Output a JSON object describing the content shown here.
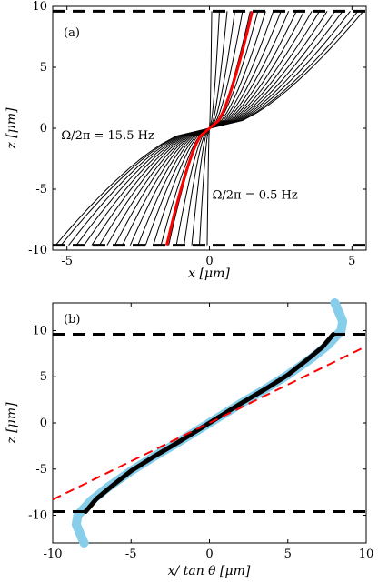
{
  "chart_data": [
    {
      "type": "line",
      "panel_label": "(a)",
      "xlabel": "x [μm]",
      "ylabel": "z [μm]",
      "xlim": [
        -5.5,
        5.5
      ],
      "ylim": [
        -10,
        10
      ],
      "xticks": [
        -5,
        0,
        5
      ],
      "xtick_labels": [
        "-5",
        "0",
        "5"
      ],
      "yticks": [
        -10,
        -5,
        0,
        5,
        10
      ],
      "ytick_labels": [
        "-10",
        "-5",
        "0",
        "5",
        "10"
      ],
      "grid": false,
      "boundary_z": [
        9.6,
        -9.6
      ],
      "curve_family": {
        "color": "#000000",
        "endpoint_x_at_top": [
          0.08,
          0.35,
          0.62,
          0.89,
          1.16,
          1.43,
          1.7,
          1.97,
          2.24,
          2.51,
          2.78,
          3.05,
          3.32,
          3.59,
          3.86,
          4.13,
          4.4,
          4.67,
          4.94,
          5.21,
          5.4
        ]
      },
      "highlight_curve": {
        "color": "#ff0000",
        "endpoint_x_at_top": 1.5
      },
      "annotations": [
        {
          "text": "Ω/2π = 15.5 Hz",
          "x": -5.2,
          "z": -0.9
        },
        {
          "text": "Ω/2π = 0.5 Hz",
          "x": 0.1,
          "z": -5.8
        }
      ]
    },
    {
      "type": "line",
      "panel_label": "(b)",
      "xlabel": "x/ tan θ  [μm]",
      "ylabel": "z [μm]",
      "xlim": [
        -10,
        10
      ],
      "ylim": [
        -13,
        13
      ],
      "xticks": [
        -10,
        -5,
        0,
        5,
        10
      ],
      "xtick_labels": [
        "-10",
        "-5",
        "0",
        "5",
        "10"
      ],
      "yticks": [
        -10,
        -5,
        0,
        5,
        10
      ],
      "ytick_labels": [
        "-10",
        "-5",
        "0",
        "5",
        "10"
      ],
      "grid": false,
      "boundary_z": [
        9.6,
        -9.6
      ],
      "series": [
        {
          "style": "thick-light-blue",
          "color": "#87ceeb",
          "x": [
            -8.0,
            -8.5,
            -8.4,
            -7.6,
            -6.5,
            -5.0,
            -3.5,
            -2.0,
            0.0,
            2.0,
            3.5,
            5.0,
            6.5,
            7.6,
            8.4,
            8.5,
            8.0
          ],
          "z": [
            -13.0,
            -11.0,
            -10.0,
            -8.5,
            -7.0,
            -5.2,
            -3.6,
            -2.1,
            0.0,
            2.1,
            3.6,
            5.2,
            7.0,
            8.5,
            10.0,
            11.0,
            13.0
          ]
        },
        {
          "style": "thick-black",
          "color": "#000000",
          "x": [
            -7.9,
            -7.2,
            -6.2,
            -5.0,
            -3.5,
            -2.0,
            0.0,
            2.0,
            3.5,
            5.0,
            6.2,
            7.2,
            7.9
          ],
          "z": [
            -9.6,
            -8.2,
            -6.8,
            -5.2,
            -3.6,
            -2.1,
            0.0,
            2.1,
            3.6,
            5.2,
            6.8,
            8.2,
            9.6
          ]
        },
        {
          "style": "dashed-red",
          "color": "#ff0000",
          "x": [
            -10,
            10
          ],
          "z": [
            -8.3,
            8.3
          ]
        }
      ]
    }
  ]
}
